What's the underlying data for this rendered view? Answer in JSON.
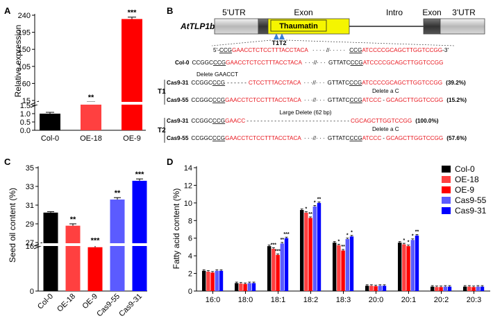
{
  "panels": {
    "a": "A",
    "b": "B",
    "c": "C",
    "d": "D"
  },
  "colors": {
    "col0": "#000000",
    "oe18": "#ff4040",
    "oe9": "#ff0000",
    "cas955": "#5b5bff",
    "cas931": "#0000ff",
    "seq_red": "#e8141c",
    "exon_yellow": "#f5f500",
    "triangle": "#3a7fd5"
  },
  "chart_data": [
    {
      "id": "A",
      "type": "bar",
      "ylabel": "Relative expression",
      "categories": [
        "Col-0",
        "OE-18",
        "OE-9"
      ],
      "values": [
        1.0,
        10.5,
        230
      ],
      "errors": [
        0.08,
        0.6,
        5
      ],
      "significance": [
        "",
        "**",
        "***"
      ],
      "y_ticks_lower": [
        "0.0",
        "0.5",
        "1.0",
        "1.5"
      ],
      "y_ticks_upper": [
        "15",
        "60",
        "105",
        "150",
        "195",
        "240"
      ],
      "axis_break": true
    },
    {
      "id": "C",
      "type": "bar",
      "ylabel": "Seed oil content (%)",
      "categories": [
        "Col-0",
        "OE-18",
        "OE-9",
        "Cas9-55",
        "Cas9-31"
      ],
      "values": [
        30.2,
        28.8,
        26.5,
        31.6,
        33.6
      ],
      "errors": [
        0.1,
        0.2,
        0.25,
        0.2,
        0.2
      ],
      "significance": [
        "",
        "**",
        "***",
        "**",
        "***"
      ],
      "y_ticks": [
        "0",
        "16",
        "27",
        "29",
        "31",
        "33",
        "35"
      ],
      "axis_break": true
    },
    {
      "id": "D",
      "type": "bar",
      "ylabel": "Fatty acid content (%)",
      "categories": [
        "16:0",
        "18:0",
        "18:1",
        "18:2",
        "18:3",
        "20:0",
        "20:1",
        "20:2",
        "20:3"
      ],
      "y_ticks": [
        "0",
        "2",
        "4",
        "6",
        "8",
        "10",
        "12",
        "14"
      ],
      "ylim": [
        0,
        14
      ],
      "series": [
        {
          "name": "Col-0",
          "values": [
            2.3,
            0.9,
            5.1,
            9.2,
            5.5,
            0.6,
            5.5,
            0.5,
            0.5
          ],
          "sig": [
            "",
            "",
            "",
            "",
            "",
            "",
            "",
            "",
            ""
          ]
        },
        {
          "name": "OE-18",
          "values": [
            2.2,
            0.85,
            4.8,
            8.9,
            5.2,
            0.6,
            5.3,
            0.45,
            0.5
          ],
          "sig": [
            "",
            "",
            "***",
            "*",
            "*",
            "",
            "*",
            "",
            ""
          ]
        },
        {
          "name": "OE-9",
          "values": [
            2.1,
            0.8,
            4.1,
            8.3,
            4.6,
            0.55,
            5.1,
            0.45,
            0.45
          ],
          "sig": [
            "",
            "",
            "***",
            "**",
            "**",
            "",
            "*",
            "",
            ""
          ]
        },
        {
          "name": "Cas9-55",
          "values": [
            2.3,
            0.9,
            5.4,
            9.6,
            5.9,
            0.6,
            5.8,
            0.5,
            0.5
          ],
          "sig": [
            "",
            "",
            "**",
            "*",
            "*",
            "",
            "*",
            "",
            ""
          ]
        },
        {
          "name": "Cas9-31",
          "values": [
            2.3,
            0.9,
            6.0,
            10.0,
            6.2,
            0.6,
            6.3,
            0.5,
            0.5
          ],
          "sig": [
            "",
            "",
            "***",
            "**",
            "*",
            "",
            "**",
            "",
            ""
          ]
        }
      ]
    }
  ],
  "gene": {
    "name": "AtTLP1b",
    "utr5": "5'UTR",
    "exon1": "Exon",
    "intro": "Intro",
    "exon2": "Exon",
    "utr3": "3'UTR",
    "domain": "Thaumatin",
    "targets": "T1T2"
  },
  "sequences": {
    "ref": {
      "p5": "5'-",
      "a": "CCG",
      "b": "GAACCTCTCCTTTACCTACA",
      "gap": "· · · · //· · · · ·",
      "c": "CCG",
      "d": "ATCCCCGCAGCTTGGTCCGG",
      "p3": "-3'"
    },
    "col0": {
      "label": "Col-0",
      "a": "CCGGC",
      "b": "CCG",
      "c": "GAACCTCTCCTTTACCTACA",
      "gap": "· · ·//· · ·",
      "d": "GTTATC",
      "e": "CCG",
      "f": "ATCCCCGCAGCTTGGTCCGG"
    },
    "t1": {
      "label": "T1",
      "note1": "Delete GAACCT",
      "note2": "Delete a C",
      "r1": {
        "label": "Cas9-31",
        "a": "CCGGC",
        "b": "CCG",
        "dash": "- - - - - -",
        "c": "CTCCTTTACCTACA",
        "gap": "· · ·//· · ·",
        "d": "GTTATC",
        "e": "CCG",
        "f": "ATCCCCGCAGCTTGGTCCGG",
        "pct": "(39.2%)"
      },
      "r2": {
        "label": "Cas9-55",
        "a": "CCGGC",
        "b": "CCG",
        "c": "GAACCTCTCCTTTACCTACA",
        "gap": "· · ·//· · ·",
        "d": "GTTATC",
        "e": "CCG",
        "f1": "ATCCC",
        "dash": "-",
        "f2": "GCAGCTTGGTCCGG",
        "pct": "(15.2%)"
      }
    },
    "t2": {
      "label": "T2",
      "note1": "Large Delete (62 bp)",
      "note2": "Delete a C",
      "r1": {
        "label": "Cas9-31",
        "a": "CCGGC",
        "b": "CCG",
        "c": "GAACC",
        "dash": "- - - - - - - - - - - - - - - - - - - - - - - - - - - - - -",
        "f": "CGCAGCTTGGTCCGG",
        "pct": "(100.0%)"
      },
      "r2": {
        "label": "Cas9-55",
        "a": "CCGGC",
        "b": "CCG",
        "c": "GAACCTCTCCTTTACCTACA",
        "gap": "· · ·//· · ·",
        "d": "GTTATC",
        "e": "CCG",
        "f1": "ATCCC",
        "dash": "-",
        "f2": "GCAGCTTGGTCCGG",
        "pct": "(57.6%)"
      }
    }
  }
}
